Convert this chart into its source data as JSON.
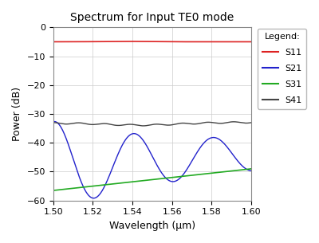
{
  "title": "Spectrum for Input TE0 mode",
  "xlabel": "Wavelength (μm)",
  "ylabel": "Power (dB)",
  "xlim": [
    1.5,
    1.6
  ],
  "ylim": [
    -60,
    0
  ],
  "yticks": [
    0,
    -10,
    -20,
    -30,
    -40,
    -50,
    -60
  ],
  "xticks": [
    1.5,
    1.52,
    1.54,
    1.56,
    1.58,
    1.6
  ],
  "legend_title": "Legend:",
  "legend_entries": [
    "S11",
    "S21",
    "S31",
    "S41"
  ],
  "S11_color": "#dd2222",
  "S21_color": "#2222cc",
  "S31_color": "#22aa22",
  "S41_color": "#444444",
  "background_color": "#ffffff",
  "plot_bg_color": "#ffffff"
}
